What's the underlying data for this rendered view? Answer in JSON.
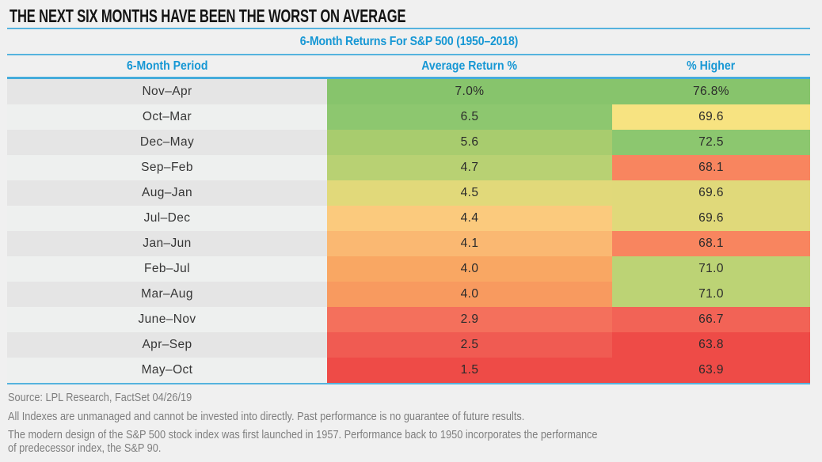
{
  "header": {
    "title": "THE NEXT SIX MONTHS HAVE BEEN THE WORST ON AVERAGE"
  },
  "table": {
    "title": "6-Month Returns For S&P 500 (1950–2018)",
    "columns": [
      "6-Month Period",
      "Average Return %",
      "% Higher"
    ],
    "rows": [
      {
        "period": "Nov–Apr",
        "avg_return": "7.0%",
        "pct_higher": "76.8%",
        "avg_color": "#87c46c",
        "higher_color": "#87c46c"
      },
      {
        "period": "Oct–Mar",
        "avg_return": "6.5",
        "pct_higher": "69.6",
        "avg_color": "#8dc76f",
        "higher_color": "#f7e381"
      },
      {
        "period": "Dec–May",
        "avg_return": "5.6",
        "pct_higher": "72.5",
        "avg_color": "#a8cc6e",
        "higher_color": "#8cc76f"
      },
      {
        "period": "Sep–Feb",
        "avg_return": "4.7",
        "pct_higher": "68.1",
        "avg_color": "#b8d173",
        "higher_color": "#f8855f"
      },
      {
        "period": "Aug–Jan",
        "avg_return": "4.5",
        "pct_higher": "69.6",
        "avg_color": "#e1d97a",
        "higher_color": "#e0d97a"
      },
      {
        "period": "Jul–Dec",
        "avg_return": "4.4",
        "pct_higher": "69.6",
        "avg_color": "#fbca7d",
        "higher_color": "#e0d97a"
      },
      {
        "period": "Jan–Jun",
        "avg_return": "4.1",
        "pct_higher": "68.1",
        "avg_color": "#fab872",
        "higher_color": "#f8855f"
      },
      {
        "period": "Feb–Jul",
        "avg_return": "4.0",
        "pct_higher": "71.0",
        "avg_color": "#f9a763",
        "higher_color": "#bcd375"
      },
      {
        "period": "Mar–Aug",
        "avg_return": "4.0",
        "pct_higher": "71.0",
        "avg_color": "#f89a5f",
        "higher_color": "#bcd375"
      },
      {
        "period": "June–Nov",
        "avg_return": "2.9",
        "pct_higher": "66.7",
        "avg_color": "#f4705c",
        "higher_color": "#f26356"
      },
      {
        "period": "Apr–Sep",
        "avg_return": "2.5",
        "pct_higher": "63.8",
        "avg_color": "#f05b52",
        "higher_color": "#ee4b47"
      },
      {
        "period": "May–Oct",
        "avg_return": "1.5",
        "pct_higher": "63.9",
        "avg_color": "#ee4b47",
        "higher_color": "#ee4b47"
      }
    ]
  },
  "footer": {
    "source": "Source: LPL Research, FactSet 04/26/19",
    "disclaimer": "All Indexes are unmanaged and cannot be invested into directly. Past performance is no guarantee of future results.",
    "note_lines": [
      "The modern design of the S&P 500 stock index was first launched in 1957. Performance back to 1950 incorporates the performance",
      "of predecessor index, the S&P 90."
    ]
  },
  "colors": {
    "page_background": "#f0f0f0",
    "accent_text_blue": "#1697d4",
    "accent_line_blue": "#55b3de",
    "row_alt_dark": "#e5e5e5",
    "row_alt_light": "#eef0ef"
  },
  "chart_data": {
    "type": "table",
    "title": "6-Month Returns For S&P 500 (1950–2018)",
    "columns": [
      "6-Month Period",
      "Average Return %",
      "% Higher"
    ],
    "rows": [
      [
        "Nov–Apr",
        7.0,
        76.8
      ],
      [
        "Oct–Mar",
        6.5,
        69.6
      ],
      [
        "Dec–May",
        5.6,
        72.5
      ],
      [
        "Sep–Feb",
        4.7,
        68.1
      ],
      [
        "Aug–Jan",
        4.5,
        69.6
      ],
      [
        "Jul–Dec",
        4.4,
        69.6
      ],
      [
        "Jan–Jun",
        4.1,
        68.1
      ],
      [
        "Feb–Jul",
        4.0,
        71.0
      ],
      [
        "Mar–Aug",
        4.0,
        71.0
      ],
      [
        "June–Nov",
        2.9,
        66.7
      ],
      [
        "Apr–Sep",
        2.5,
        63.8
      ],
      [
        "May–Oct",
        1.5,
        63.9
      ]
    ],
    "style_note": "cells colored as heatmap from green (best) to red (worst)"
  }
}
